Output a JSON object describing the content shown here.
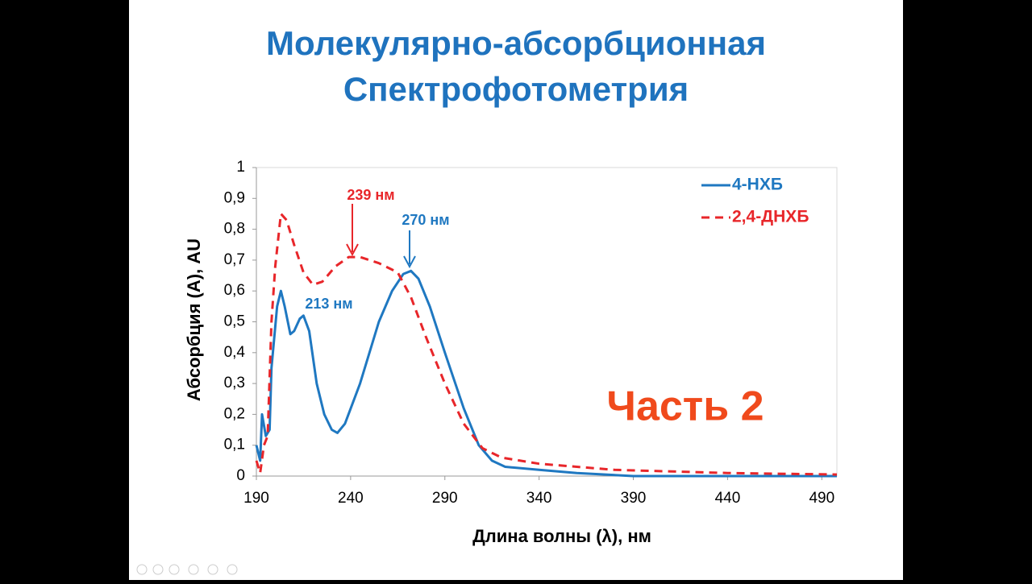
{
  "chart_data": {
    "type": "line",
    "title": "Молекулярно-абсорбционная",
    "subtitle": "Спектрофотометрия",
    "x_label": "Длина волны (λ), нм",
    "y_label": "Абсорбция (А), AU",
    "annotations": [
      "239 нм",
      "270 нм",
      "213 нм",
      "Часть 2"
    ],
    "xlim": [
      190,
      498
    ],
    "ylim": [
      0,
      1
    ],
    "xticks": [
      190,
      240,
      290,
      340,
      390,
      440,
      490
    ],
    "yticks": [
      0,
      {
        "value": 0.1,
        "label": "0,1"
      },
      {
        "value": 0.2,
        "label": "0,2"
      },
      {
        "value": 0.3,
        "label": "0,3"
      },
      {
        "value": 0.4,
        "label": "0,4"
      },
      {
        "value": 0.5,
        "label": "0,5"
      },
      {
        "value": 0.6,
        "label": "0,6"
      },
      {
        "value": 0.7,
        "label": "0,7"
      },
      {
        "value": 0.8,
        "label": "0,8"
      },
      {
        "value": 0.9,
        "label": "0,9"
      },
      1
    ],
    "legend": "top-right",
    "series": [
      {
        "name": "4-НХБ",
        "color": "#1f78c1",
        "dash": false,
        "x": [
          190,
          192,
          193,
          195,
          197,
          198,
          201,
          203,
          205,
          208,
          210,
          213,
          215,
          218,
          222,
          226,
          230,
          233,
          237,
          245,
          255,
          262,
          268,
          272,
          276,
          282,
          290,
          300,
          308,
          315,
          322,
          340,
          360,
          390,
          498
        ],
        "values": [
          0.1,
          0.05,
          0.2,
          0.13,
          0.15,
          0.35,
          0.55,
          0.6,
          0.55,
          0.46,
          0.47,
          0.51,
          0.52,
          0.47,
          0.3,
          0.2,
          0.15,
          0.14,
          0.17,
          0.3,
          0.5,
          0.6,
          0.655,
          0.665,
          0.64,
          0.55,
          0.4,
          0.22,
          0.1,
          0.05,
          0.03,
          0.02,
          0.01,
          0,
          0
        ]
      },
      {
        "name": "2,4-ДНХБ",
        "color": "#e8262a",
        "dash": true,
        "x": [
          190,
          192,
          194,
          196,
          198,
          200,
          203,
          206,
          210,
          215,
          220,
          225,
          232,
          239,
          245,
          255,
          265,
          272,
          280,
          290,
          300,
          310,
          320,
          340,
          380,
          440,
          498
        ],
        "values": [
          0.05,
          0.01,
          0.1,
          0.13,
          0.5,
          0.68,
          0.85,
          0.83,
          0.75,
          0.66,
          0.62,
          0.63,
          0.68,
          0.71,
          0.71,
          0.69,
          0.66,
          0.58,
          0.45,
          0.3,
          0.17,
          0.09,
          0.06,
          0.04,
          0.02,
          0.01,
          0.005
        ]
      }
    ]
  }
}
